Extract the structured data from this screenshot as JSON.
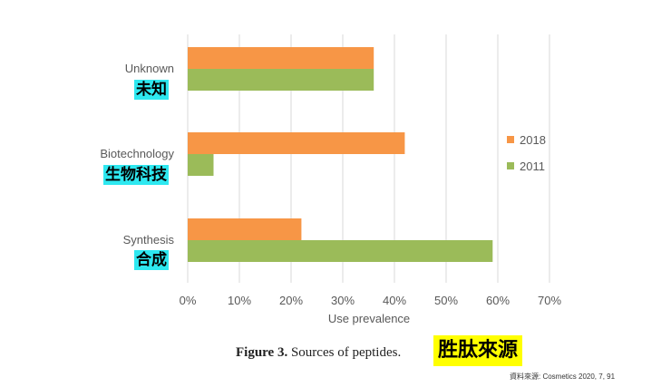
{
  "chart_data": {
    "type": "bar",
    "orientation": "horizontal",
    "categories": [
      "Unknown",
      "Biotechnology",
      "Synthesis"
    ],
    "categories_zh": [
      "未知",
      "生物科技",
      "合成"
    ],
    "series": [
      {
        "name": "2018",
        "color": "#f79646",
        "values": [
          36,
          42,
          22
        ]
      },
      {
        "name": "2011",
        "color": "#9bbb59",
        "values": [
          36,
          5,
          59
        ]
      }
    ],
    "xlabel": "Use prevalence",
    "xlim": [
      0,
      70
    ],
    "xticks": [
      "0%",
      "10%",
      "20%",
      "30%",
      "40%",
      "50%",
      "60%",
      "70%"
    ],
    "grid": true,
    "legend_position": "right"
  },
  "caption": {
    "label": "Figure 3.",
    "text": "Sources of peptides.",
    "title_zh": "胜肽來源"
  },
  "source_note": "資料來源: Cosmetics 2020, 7, 91"
}
